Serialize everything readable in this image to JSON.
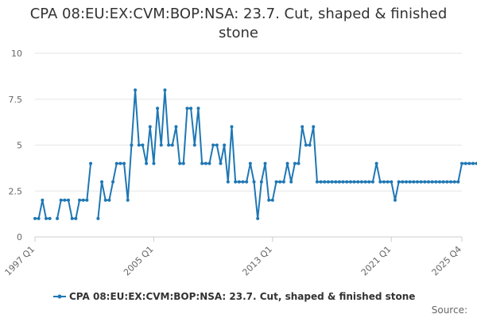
{
  "chart_data": {
    "type": "line",
    "title": "CPA 08:EU:EX:CVM:BOP:NSA: 23.7. Cut, shaped & finished stone",
    "ylim": [
      0,
      10
    ],
    "y_ticks": [
      "0",
      "2.5",
      "5",
      "7.5",
      "10"
    ],
    "x_tick_labels": [
      "1997 Q1",
      "2005 Q1",
      "2013 Q1",
      "2021 Q1",
      "2025 Q4"
    ],
    "x_start": "1997 Q1",
    "x_end": "2025 Q4",
    "grid": "horizontal",
    "legend_position": "bottom",
    "series": [
      {
        "name": "CPA 08:EU:EX:CVM:BOP:NSA: 23.7. Cut, shaped & finished stone",
        "color": "#1f77b4",
        "values": [
          1,
          1,
          2,
          1,
          1,
          null,
          1,
          2,
          2,
          2,
          1,
          1,
          2,
          2,
          2,
          4,
          null,
          1,
          3,
          2,
          2,
          3,
          4,
          4,
          4,
          2,
          5,
          8,
          5,
          5,
          4,
          6,
          4,
          7,
          5,
          8,
          5,
          5,
          6,
          4,
          4,
          7,
          7,
          5,
          7,
          4,
          4,
          4,
          5,
          5,
          4,
          5,
          3,
          6,
          3,
          3,
          3,
          3,
          4,
          3,
          1,
          3,
          4,
          2,
          2,
          3,
          3,
          3,
          4,
          3,
          4,
          4,
          6,
          5,
          5,
          6,
          3,
          3,
          3,
          3,
          3,
          3,
          3,
          3,
          3,
          3,
          3,
          3,
          3,
          3,
          3,
          3,
          4,
          3,
          3,
          3,
          3,
          2,
          3,
          3,
          3,
          3,
          3,
          3,
          3,
          3,
          3,
          3,
          3,
          3,
          3,
          3,
          3,
          3,
          3,
          4,
          4,
          4,
          4,
          4,
          4,
          4
        ]
      }
    ]
  },
  "source_label": "Source:"
}
